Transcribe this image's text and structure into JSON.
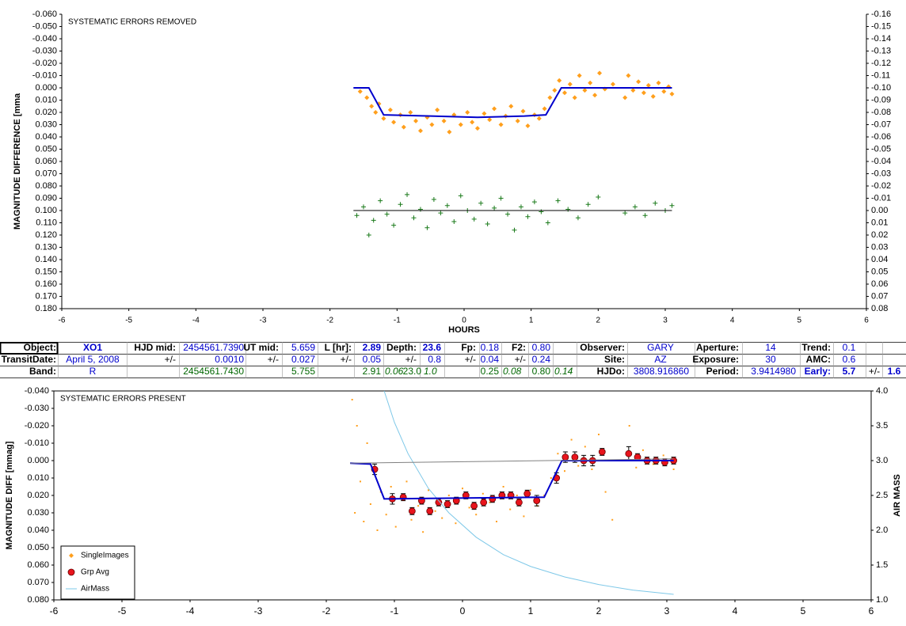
{
  "chart_data": [
    {
      "type": "scatter",
      "annotation": "SYSTEMATIC ERRORS REMOVED",
      "x_label": "HOURS",
      "y_label": "MAGNITUDE DIFFERENCE [mma",
      "xlim": [
        -6,
        6
      ],
      "xticks": [
        -6,
        -5,
        -4,
        -3,
        -2,
        -1,
        0,
        1,
        2,
        3,
        4,
        5,
        6
      ],
      "ylim": [
        0.18,
        -0.06
      ],
      "yticks": [
        {
          "value": -0.06,
          "label": "-0.060"
        },
        {
          "value": -0.05,
          "label": "-0.050"
        },
        {
          "value": -0.04,
          "label": "-0.040"
        },
        {
          "value": -0.03,
          "label": "-0.030"
        },
        {
          "value": -0.02,
          "label": "-0.020"
        },
        {
          "value": -0.01,
          "label": "-0.010"
        },
        {
          "value": 0,
          "label": "0.000"
        },
        {
          "value": 0.01,
          "label": "0.010"
        },
        {
          "value": 0.02,
          "label": "0.020"
        },
        {
          "value": 0.03,
          "label": "0.030"
        },
        {
          "value": 0.04,
          "label": "0.040"
        },
        {
          "value": 0.05,
          "label": "0.050"
        },
        {
          "value": 0.06,
          "label": "0.060"
        },
        {
          "value": 0.07,
          "label": "0.070"
        },
        {
          "value": 0.08,
          "label": "0.080"
        },
        {
          "value": 0.09,
          "label": "0.090"
        },
        {
          "value": 0.1,
          "label": "0.100"
        },
        {
          "value": 0.11,
          "label": "0.110"
        },
        {
          "value": 0.12,
          "label": "0.120"
        },
        {
          "value": 0.13,
          "label": "0.130"
        },
        {
          "value": 0.14,
          "label": "0.140"
        },
        {
          "value": 0.15,
          "label": "0.150"
        },
        {
          "value": 0.16,
          "label": "0.160"
        },
        {
          "value": 0.17,
          "label": "0.170"
        },
        {
          "value": 0.18,
          "label": "0.180"
        }
      ],
      "y2lim": [
        0.08,
        -0.16
      ],
      "y2ticks": [
        -0.16,
        -0.15,
        -0.14,
        -0.13,
        -0.12,
        -0.11,
        {
          "value": -0.1,
          "label": "-0.10"
        },
        -0.09,
        -0.08,
        -0.07,
        -0.06,
        -0.05,
        -0.04,
        -0.03,
        -0.02,
        -0.01,
        {
          "value": 0,
          "label": "0.00"
        },
        0.01,
        0.02,
        0.03,
        0.04,
        0.05,
        0.06,
        0.07,
        0.08
      ],
      "series": [
        {
          "style": "points",
          "marker": "diamond",
          "color": "#ff9f1c",
          "x": [
            -1.55,
            -1.45,
            -1.38,
            -1.32,
            -1.27,
            -1.2,
            -1.1,
            -1.05,
            -0.95,
            -0.9,
            -0.8,
            -0.72,
            -0.65,
            -0.55,
            -0.48,
            -0.4,
            -0.3,
            -0.22,
            -0.15,
            -0.05,
            0.05,
            0.12,
            0.2,
            0.3,
            0.38,
            0.45,
            0.55,
            0.62,
            0.7,
            0.8,
            0.88,
            0.95,
            1.05,
            1.12,
            1.2,
            1.28,
            1.35,
            1.42,
            1.5,
            1.58,
            1.65,
            1.72,
            1.8,
            1.88,
            1.95,
            2.02,
            2.1,
            2.22,
            2.4,
            2.45,
            2.52,
            2.6,
            2.68,
            2.75,
            2.82,
            2.9,
            2.98,
            3.05,
            3.1
          ],
          "values": [
            0.003,
            0.008,
            0.015,
            0.02,
            0.013,
            0.025,
            0.018,
            0.028,
            0.022,
            0.032,
            0.02,
            0.027,
            0.035,
            0.024,
            0.03,
            0.018,
            0.027,
            0.036,
            0.022,
            0.03,
            0.02,
            0.028,
            0.033,
            0.021,
            0.026,
            0.017,
            0.03,
            0.023,
            0.015,
            0.027,
            0.019,
            0.031,
            0.022,
            0.025,
            0.017,
            0.008,
            0.002,
            -0.006,
            0.004,
            -0.003,
            0.008,
            -0.01,
            0.002,
            -0.004,
            0.006,
            -0.012,
            0.001,
            -0.003,
            0.008,
            -0.01,
            0.002,
            -0.005,
            0.004,
            -0.002,
            0.007,
            -0.004,
            0.003,
            -0.001,
            0.005
          ]
        },
        {
          "style": "line",
          "color": "#0000cc",
          "x": [
            -1.65,
            -1.42,
            -1.2,
            -0.5,
            0.2,
            0.9,
            1.22,
            1.45,
            3.1
          ],
          "values": [
            0,
            0,
            0.022,
            0.023,
            0.024,
            0.023,
            0.022,
            0,
            0
          ]
        },
        {
          "style": "points",
          "marker": "plus",
          "color": "#1a7a1a",
          "x": [
            -1.6,
            -1.5,
            -1.42,
            -1.35,
            -1.25,
            -1.15,
            -1.05,
            -0.95,
            -0.85,
            -0.75,
            -0.65,
            -0.55,
            -0.45,
            -0.35,
            -0.25,
            -0.15,
            -0.05,
            0.05,
            0.15,
            0.25,
            0.35,
            0.45,
            0.55,
            0.65,
            0.75,
            0.85,
            0.95,
            1.05,
            1.15,
            1.25,
            1.4,
            1.55,
            1.7,
            1.85,
            2.0,
            2.4,
            2.55,
            2.7,
            2.85,
            3.0,
            3.1
          ],
          "values": [
            0.104,
            0.097,
            0.12,
            0.108,
            0.092,
            0.103,
            0.112,
            0.095,
            0.087,
            0.106,
            0.099,
            0.114,
            0.091,
            0.102,
            0.096,
            0.109,
            0.088,
            0.1,
            0.107,
            0.094,
            0.111,
            0.098,
            0.09,
            0.103,
            0.116,
            0.097,
            0.105,
            0.093,
            0.101,
            0.11,
            0.092,
            0.099,
            0.106,
            0.095,
            0.089,
            0.102,
            0.097,
            0.104,
            0.094,
            0.1,
            0.096
          ]
        },
        {
          "style": "line",
          "color": "#000000",
          "x": [
            -1.65,
            3.1
          ],
          "values": [
            0.1,
            0.1
          ]
        }
      ]
    },
    {
      "type": "scatter",
      "annotation": "SYSTEMATIC ERRORS PRESENT",
      "y_label": "MAGNITUDE DIFF [mmag]",
      "y2_label": "AIR MASS",
      "legend": "lower left",
      "xlim": [
        -6,
        6
      ],
      "xticks": [
        -6,
        -5,
        -4,
        -3,
        -2,
        -1,
        0,
        1,
        2,
        3,
        4,
        5,
        6
      ],
      "ylim": [
        0.08,
        -0.04
      ],
      "yticks": [
        {
          "value": -0.04,
          "label": "-0.040"
        },
        {
          "value": -0.03,
          "label": "-0.030"
        },
        {
          "value": -0.02,
          "label": "-0.020"
        },
        {
          "value": -0.01,
          "label": "-0.010"
        },
        {
          "value": 0,
          "label": "0.000"
        },
        {
          "value": 0.01,
          "label": "0.010"
        },
        {
          "value": 0.02,
          "label": "0.020"
        },
        {
          "value": 0.03,
          "label": "0.030"
        },
        {
          "value": 0.04,
          "label": "0.040"
        },
        {
          "value": 0.05,
          "label": "0.050"
        },
        {
          "value": 0.06,
          "label": "0.060"
        },
        {
          "value": 0.07,
          "label": "0.070"
        },
        {
          "value": 0.08,
          "label": "0.080"
        }
      ],
      "y2lim": [
        1,
        4
      ],
      "y2ticks": [
        {
          "value": 1,
          "label": "1.0"
        },
        1.5,
        {
          "value": 2,
          "label": "2.0"
        },
        2.5,
        {
          "value": 3,
          "label": "3.0"
        },
        3.5,
        {
          "value": 4,
          "label": "4.0"
        }
      ],
      "series": [
        {
          "name": "SingleImages",
          "style": "points",
          "marker": "dot",
          "color": "#ff9f1c",
          "x": [
            -1.62,
            -1.58,
            -1.55,
            -1.5,
            -1.45,
            -1.4,
            -1.35,
            -1.3,
            -1.25,
            -1.2,
            -1.12,
            -1.05,
            -0.98,
            -0.9,
            -0.82,
            -0.75,
            -0.65,
            -0.58,
            -0.5,
            -0.4,
            -0.3,
            -0.2,
            -0.1,
            0.0,
            0.1,
            0.2,
            0.3,
            0.4,
            0.5,
            0.6,
            0.7,
            0.8,
            0.9,
            1.0,
            1.1,
            1.2,
            1.3,
            1.4,
            1.5,
            1.6,
            1.7,
            1.8,
            1.9,
            2.0,
            2.1,
            2.2,
            2.45,
            2.55,
            2.65,
            2.8,
            2.95,
            3.1
          ],
          "values": [
            -0.035,
            0.03,
            -0.02,
            0.012,
            0.035,
            -0.01,
            0.025,
            0.005,
            0.04,
            0.018,
            0.031,
            0.015,
            0.038,
            0.022,
            0.012,
            0.034,
            0.026,
            0.041,
            0.017,
            0.029,
            0.033,
            0.02,
            0.036,
            0.016,
            0.027,
            0.031,
            0.019,
            0.024,
            0.035,
            0.015,
            0.028,
            0.02,
            0.032,
            0.017,
            0.026,
            0.02,
            0.01,
            -0.004,
            0.006,
            -0.012,
            0.003,
            -0.008,
            0.005,
            -0.015,
            0.018,
            0.034,
            -0.02,
            0.004,
            -0.006,
            0.002,
            -0.003,
            0.005
          ]
        },
        {
          "name": "Grp Avg",
          "style": "points",
          "marker": "circle",
          "color": "#e8141c",
          "x": [
            -1.29,
            -1.03,
            -0.87,
            -0.74,
            -0.6,
            -0.48,
            -0.35,
            -0.22,
            -0.09,
            0.05,
            0.17,
            0.31,
            0.44,
            0.58,
            0.71,
            0.83,
            0.95,
            1.09,
            1.38,
            1.51,
            1.65,
            1.78,
            1.91,
            2.05,
            2.44,
            2.57,
            2.71,
            2.84,
            2.97,
            3.1
          ],
          "values": [
            0.005,
            0.022,
            0.021,
            0.029,
            0.023,
            0.029,
            0.024,
            0.025,
            0.023,
            0.02,
            0.026,
            0.024,
            0.022,
            0.02,
            0.02,
            0.024,
            0.019,
            0.023,
            0.01,
            -0.002,
            -0.002,
            0.0,
            0.0,
            -0.005,
            -0.004,
            -0.002,
            0.0,
            0.0,
            0.001,
            0.0
          ],
          "errors": [
            0.003,
            0.003,
            0.002,
            0.002,
            0.002,
            0.002,
            0.002,
            0.002,
            0.002,
            0.002,
            0.002,
            0.002,
            0.002,
            0.002,
            0.002,
            0.002,
            0.002,
            0.003,
            0.003,
            0.003,
            0.003,
            0.003,
            0.003,
            0.002,
            0.004,
            0.002,
            0.002,
            0.002,
            0.002,
            0.002
          ]
        },
        {
          "name": "AirMass",
          "style": "line",
          "axis": "y2",
          "color": "#7ec8e8",
          "x": [
            -1.15,
            -1.0,
            -0.8,
            -0.5,
            -0.2,
            0.2,
            0.6,
            1.0,
            1.5,
            2.0,
            2.5,
            3.1
          ],
          "values": [
            4.0,
            3.55,
            3.1,
            2.6,
            2.25,
            1.9,
            1.65,
            1.48,
            1.33,
            1.22,
            1.14,
            1.08
          ]
        },
        {
          "style": "line",
          "color": "#0000cc",
          "x": [
            -1.65,
            -1.35,
            -1.15,
            1.2,
            1.46,
            3.1
          ],
          "values": [
            0.0015,
            0.002,
            0.022,
            0.021,
            0.0,
            0.0
          ]
        },
        {
          "style": "line",
          "color": "#808080",
          "x": [
            -1.65,
            3.1
          ],
          "values": [
            0.0015,
            -0.001
          ]
        }
      ]
    }
  ],
  "table": {
    "rows": [
      [
        "Object:",
        "XO1",
        "HJD mid:",
        "2454561.7390",
        "UT mid:",
        "5.659",
        "L [hr]:",
        "2.89",
        "Depth:",
        "23.6",
        "Fp:",
        "0.18",
        "F2:",
        "0.80",
        "Observer:",
        "GARY",
        "Aperture:",
        "14",
        "Trend:",
        "0.1"
      ],
      [
        "TransitDate:",
        "April 5, 2008",
        "+/-",
        "0.0010",
        "+/-",
        "0.027",
        "+/-",
        "0.05",
        "+/-",
        "0.8",
        "+/-",
        "0.04",
        "+/-",
        "0.24",
        "Site:",
        "AZ",
        "Exposure:",
        "30",
        "AMC:",
        "0.6"
      ],
      [
        "Band:",
        "R",
        "2454561.7430",
        "5.755",
        "2.91",
        "0.06",
        "23.0",
        "1.0",
        "0.25",
        "0.08",
        "0.80",
        "0.14",
        "HJDo:",
        "3808.916860",
        "Period:",
        "3.9414980",
        "Early:",
        "5.7",
        "+/-",
        "1.6"
      ]
    ]
  }
}
